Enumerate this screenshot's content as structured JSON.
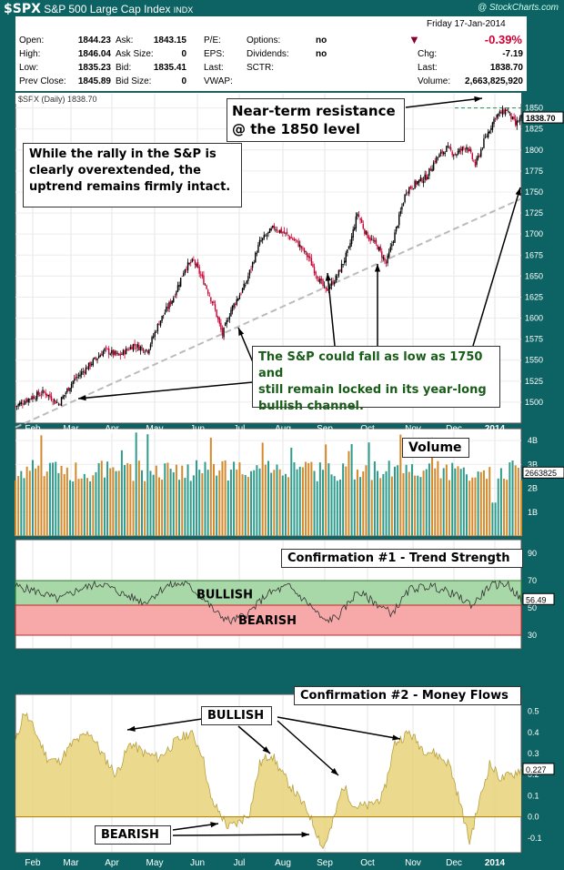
{
  "header": {
    "symbol": "$SPX",
    "name": "S&P 500 Large Cap Index",
    "exchange": "INDX",
    "watermark": "@ StockCharts.com",
    "date": "Friday  17-Jan-2014",
    "change_pct": "-0.39%",
    "quote_labels": [
      "Open:",
      "High:",
      "Low:",
      "Prev Close:",
      "Ask:",
      "Ask Size:",
      "Bid:",
      "Bid Size:",
      "P/E:",
      "EPS:",
      "Last:",
      "VWAP:",
      "Options:",
      "Dividends:",
      "SCTR:",
      "Chg:",
      "Last:",
      "Volume:"
    ],
    "quote_values": [
      "1844.23",
      "1846.04",
      "1835.23",
      "1845.89",
      "1843.15",
      "0",
      "1835.41",
      "0",
      "",
      "",
      "",
      "",
      "no",
      "no",
      "",
      "-7.19",
      "1838.70",
      "2,663,825,920"
    ],
    "chart_legend": "$SPX (Daily) 1838.70"
  },
  "colors": {
    "background": "#0d6363",
    "bullish_band": "#a8d8a8",
    "bearish_band": "#f7a8a8",
    "money_flow": "#e8d37a",
    "up_candle": "#000000",
    "down_candle": "#cc0033",
    "vol_up": "#2e9c8c",
    "vol_down": "#d4892a"
  },
  "chart_data": [
    {
      "type": "candlestick",
      "title": "$SPX (Daily) 1838.70",
      "x_ticks": [
        "Feb",
        "Mar",
        "Apr",
        "May",
        "Jun",
        "Jul",
        "Aug",
        "Sep",
        "Oct",
        "Nov",
        "Dec",
        "2014"
      ],
      "y_ticks": [
        1500,
        1525,
        1550,
        1575,
        1600,
        1625,
        1650,
        1675,
        1700,
        1725,
        1750,
        1775,
        1800,
        1825,
        1850
      ],
      "ylim": [
        1475,
        1855
      ],
      "last": "1838.70",
      "resistance_level": 1850,
      "close_waypoints": [
        [
          0,
          1495
        ],
        [
          10,
          1505
        ],
        [
          20,
          1512
        ],
        [
          30,
          1498
        ],
        [
          40,
          1525
        ],
        [
          52,
          1545
        ],
        [
          62,
          1562
        ],
        [
          72,
          1555
        ],
        [
          82,
          1568
        ],
        [
          92,
          1562
        ],
        [
          100,
          1595
        ],
        [
          110,
          1625
        ],
        [
          118,
          1660
        ],
        [
          124,
          1668
        ],
        [
          132,
          1640
        ],
        [
          138,
          1615
        ],
        [
          144,
          1580
        ],
        [
          150,
          1610
        ],
        [
          160,
          1640
        ],
        [
          170,
          1690
        ],
        [
          180,
          1708
        ],
        [
          188,
          1700
        ],
        [
          196,
          1690
        ],
        [
          204,
          1672
        ],
        [
          210,
          1650
        ],
        [
          216,
          1632
        ],
        [
          224,
          1650
        ],
        [
          232,
          1682
        ],
        [
          238,
          1725
        ],
        [
          244,
          1700
        ],
        [
          252,
          1685
        ],
        [
          258,
          1665
        ],
        [
          264,
          1700
        ],
        [
          272,
          1752
        ],
        [
          280,
          1762
        ],
        [
          286,
          1768
        ],
        [
          292,
          1788
        ],
        [
          300,
          1802
        ],
        [
          306,
          1795
        ],
        [
          314,
          1805
        ],
        [
          320,
          1782
        ],
        [
          326,
          1810
        ],
        [
          334,
          1840
        ],
        [
          342,
          1848
        ],
        [
          348,
          1830
        ],
        [
          352,
          1839
        ]
      ],
      "annotations": [
        "Near-term resistance\n@ the 1850 level",
        "While the rally in the S&P is\nclearly overextended, the\nuptrend remains firmly intact.",
        "The S&P could fall as low as 1750 and\nstill remain locked in its year-long\nbullish channel."
      ]
    },
    {
      "type": "bar",
      "title": "Volume",
      "y_ticks": [
        "4B",
        "3B",
        "2B",
        "1B"
      ],
      "ylim": [
        0,
        4.5
      ],
      "last": "2663825",
      "base_value": 2.6
    },
    {
      "type": "line",
      "title": "Confirmation #1 - Trend Strength",
      "y_ticks": [
        30,
        50,
        70,
        90
      ],
      "ylim": [
        20,
        100
      ],
      "last": "56.49",
      "bands": [
        {
          "label": "BULLISH",
          "from": 52,
          "to": 70
        },
        {
          "label": "BEARISH",
          "from": 30,
          "to": 52
        }
      ],
      "waypoints": [
        [
          0,
          66
        ],
        [
          15,
          62
        ],
        [
          30,
          56
        ],
        [
          45,
          64
        ],
        [
          60,
          68
        ],
        [
          75,
          60
        ],
        [
          90,
          54
        ],
        [
          105,
          66
        ],
        [
          118,
          68
        ],
        [
          130,
          58
        ],
        [
          140,
          46
        ],
        [
          150,
          40
        ],
        [
          162,
          46
        ],
        [
          175,
          60
        ],
        [
          190,
          66
        ],
        [
          205,
          52
        ],
        [
          215,
          40
        ],
        [
          225,
          44
        ],
        [
          238,
          62
        ],
        [
          250,
          54
        ],
        [
          262,
          46
        ],
        [
          275,
          64
        ],
        [
          290,
          66
        ],
        [
          305,
          60
        ],
        [
          318,
          52
        ],
        [
          330,
          66
        ],
        [
          342,
          68
        ],
        [
          352,
          56
        ]
      ]
    },
    {
      "type": "area",
      "title": "Confirmation #2 - Money Flows",
      "y_ticks": [
        -0.1,
        0.0,
        0.1,
        0.2,
        0.3,
        0.4,
        0.5
      ],
      "ylim": [
        -0.17,
        0.58
      ],
      "last": "0.227",
      "labels": [
        "BULLISH",
        "BEARISH"
      ],
      "waypoints": [
        [
          0,
          0.35
        ],
        [
          6,
          0.5
        ],
        [
          14,
          0.4
        ],
        [
          22,
          0.28
        ],
        [
          30,
          0.26
        ],
        [
          40,
          0.35
        ],
        [
          52,
          0.4
        ],
        [
          60,
          0.3
        ],
        [
          70,
          0.2
        ],
        [
          80,
          0.35
        ],
        [
          90,
          0.3
        ],
        [
          100,
          0.28
        ],
        [
          112,
          0.36
        ],
        [
          122,
          0.4
        ],
        [
          130,
          0.3
        ],
        [
          136,
          0.08
        ],
        [
          142,
          0.02
        ],
        [
          148,
          -0.05
        ],
        [
          155,
          -0.03
        ],
        [
          163,
          0.02
        ],
        [
          170,
          0.25
        ],
        [
          178,
          0.3
        ],
        [
          186,
          0.2
        ],
        [
          196,
          0.1
        ],
        [
          204,
          0.02
        ],
        [
          210,
          -0.08
        ],
        [
          214,
          -0.15
        ],
        [
          220,
          -0.05
        ],
        [
          228,
          0.15
        ],
        [
          236,
          0.05
        ],
        [
          246,
          0.05
        ],
        [
          256,
          0.1
        ],
        [
          264,
          0.35
        ],
        [
          274,
          0.4
        ],
        [
          284,
          0.32
        ],
        [
          292,
          0.3
        ],
        [
          302,
          0.25
        ],
        [
          310,
          0.05
        ],
        [
          316,
          -0.12
        ],
        [
          322,
          0.05
        ],
        [
          330,
          0.25
        ],
        [
          338,
          0.18
        ],
        [
          346,
          0.2
        ],
        [
          352,
          0.23
        ]
      ]
    }
  ]
}
